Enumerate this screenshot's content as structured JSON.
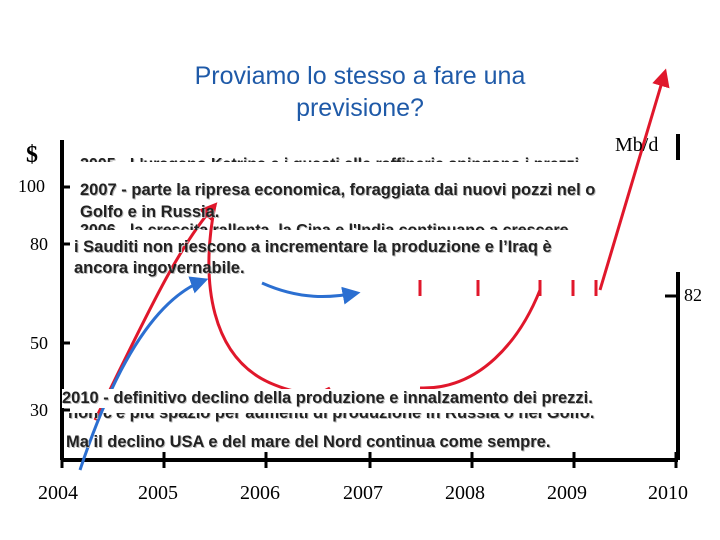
{
  "slide": {
    "title_line1": "Proviamo lo stesso a fare una",
    "title_line2": "previsione?",
    "unit_left": "$",
    "unit_right": "Mb/d",
    "right_axis_tick": "82"
  },
  "axis": {
    "y_ticks": [
      "100",
      "80",
      "50",
      "30"
    ],
    "x_ticks": [
      "2004",
      "2005",
      "2006",
      "2007",
      "2008",
      "2009",
      "2010"
    ]
  },
  "notes": {
    "hidden_2005": "2005 - L'uragano Katrina e i guasti alle raffinerie spingono i prezzi",
    "hidden_2006": "2006 - la crescita rallenta, la Cina e l'India continuano a crescere",
    "hidden_2010": "non c'è più spazio per aumenti di produzione in Russia o nel Golfo.",
    "note_2007_line1": "2007 - parte la ripresa economica, foraggiata dai nuovi pozzi nel o",
    "note_2007_line2": "Golfo e in Russia.",
    "note_saudi_line1": "i Sauditi non riescono a incrementare la produzione e l’Iraq è",
    "note_saudi_line2": "ancora ingovernabile.",
    "note_2010_line1": "2010 - definitivo declino della produzione e innalzamento dei prezzi.",
    "note_2010_line3": "Ma il declino USA e del mare del Nord continua come sempre."
  },
  "colors": {
    "price_line": "#e0172b",
    "production_line": "#2b6fd1",
    "title": "#1f5aa8"
  }
}
